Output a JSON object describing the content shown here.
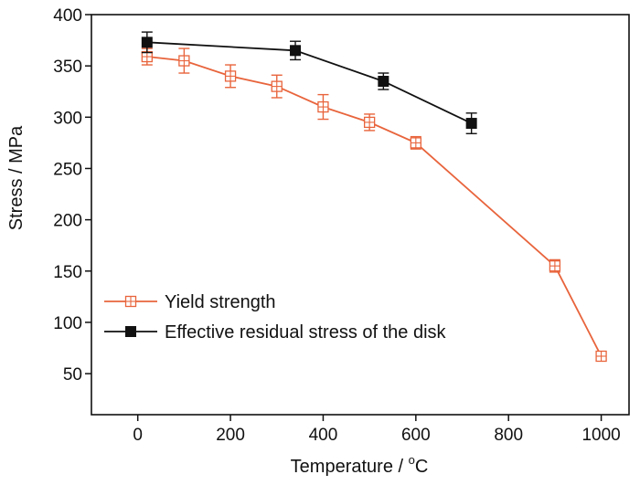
{
  "chart_data": {
    "type": "line",
    "xlabel": "Temperature / ",
    "xlabel_unit_sup": "o",
    "xlabel_unit": "C",
    "ylabel": "Stress / MPa",
    "xlim": [
      -100,
      1060
    ],
    "ylim": [
      10,
      400
    ],
    "xticks": [
      0,
      200,
      400,
      600,
      800,
      1000
    ],
    "yticks": [
      50,
      100,
      150,
      200,
      250,
      300,
      350,
      400
    ],
    "legend_position": "bottom-left",
    "grid": false,
    "series": [
      {
        "name": "Yield strength",
        "color": "#e8643c",
        "marker": "open-square-cross",
        "x": [
          20,
          100,
          200,
          300,
          400,
          500,
          600,
          900,
          1000
        ],
        "y": [
          359,
          355,
          340,
          330,
          310,
          295,
          275,
          155,
          67
        ],
        "err": [
          8,
          12,
          11,
          11,
          12,
          8,
          6,
          6,
          3
        ]
      },
      {
        "name": "Effective residual stress of the disk",
        "color": "#111111",
        "marker": "filled-square",
        "x": [
          20,
          340,
          530,
          720
        ],
        "y": [
          373,
          365,
          335,
          294
        ],
        "err": [
          10,
          9,
          8,
          10
        ]
      }
    ]
  }
}
